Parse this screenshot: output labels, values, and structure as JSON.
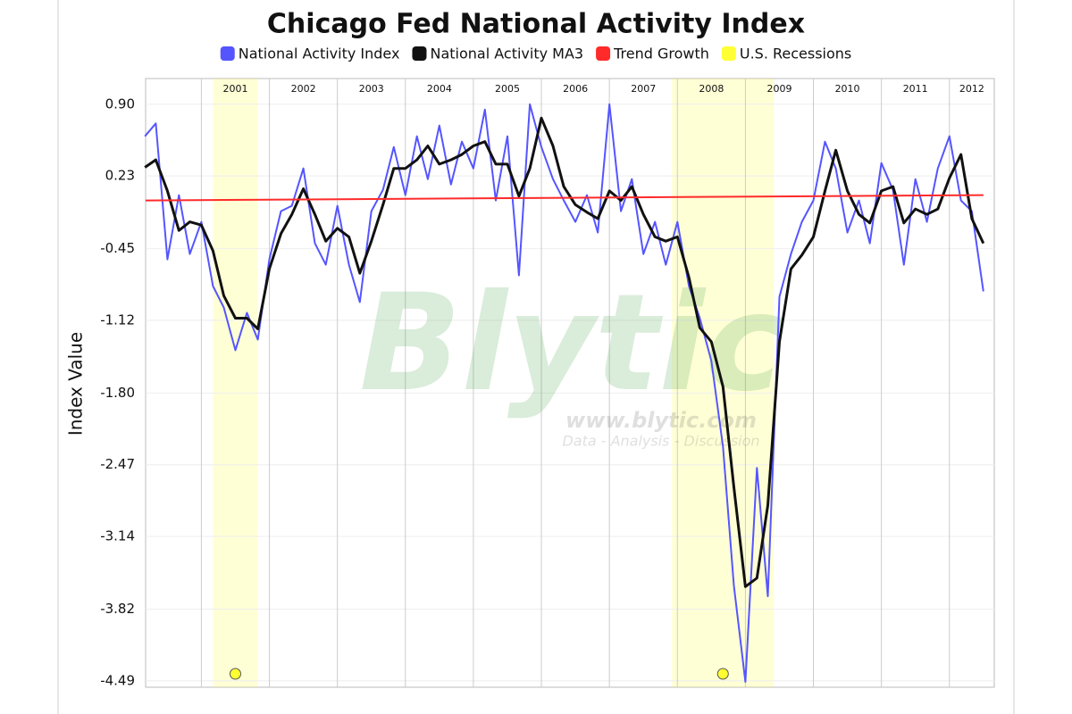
{
  "chart_data": {
    "type": "line",
    "title": "Chicago Fed National Activity Index",
    "ylabel": "Index Value",
    "xlim": [
      2000.18,
      2012.66
    ],
    "xticks": [
      2001,
      2002,
      2003,
      2004,
      2005,
      2006,
      2007,
      2008,
      2009,
      2010,
      2011,
      2012
    ],
    "ylim": [
      -4.55,
      1.14
    ],
    "yticks": [
      {
        "value": 0.9,
        "label": "0.90"
      },
      0.23,
      -0.45,
      -1.12,
      {
        "value": -1.8,
        "label": "-1.80"
      },
      -2.47,
      -3.14,
      -3.82,
      -4.49
    ],
    "grid": true,
    "legend": "top",
    "x": [
      2000.17,
      2000.33,
      2000.5,
      2000.67,
      2000.83,
      2001,
      2001.17,
      2001.33,
      2001.5,
      2001.67,
      2001.83,
      2002,
      2002.17,
      2002.33,
      2002.5,
      2002.67,
      2002.83,
      2003,
      2003.17,
      2003.33,
      2003.5,
      2003.67,
      2003.83,
      2004,
      2004.17,
      2004.33,
      2004.5,
      2004.67,
      2004.83,
      2005,
      2005.17,
      2005.33,
      2005.5,
      2005.67,
      2005.83,
      2006,
      2006.17,
      2006.33,
      2006.5,
      2006.67,
      2006.83,
      2007,
      2007.17,
      2007.33,
      2007.5,
      2007.67,
      2007.83,
      2008,
      2008.17,
      2008.33,
      2008.5,
      2008.67,
      2008.83,
      2009,
      2009.17,
      2009.33,
      2009.5,
      2009.67,
      2009.83,
      2010,
      2010.17,
      2010.33,
      2010.5,
      2010.67,
      2010.83,
      2011,
      2011.17,
      2011.33,
      2011.5,
      2011.67,
      2011.83,
      2012,
      2012.17,
      2012.33,
      2012.5
    ],
    "series": [
      {
        "name": "National Activity Index",
        "color": "#5555ff",
        "width": 2,
        "values": [
          0.6,
          0.72,
          -0.55,
          0.05,
          -0.5,
          -0.2,
          -0.8,
          -1.0,
          -1.4,
          -1.05,
          -1.3,
          -0.55,
          -0.1,
          -0.05,
          0.3,
          -0.4,
          -0.6,
          -0.05,
          -0.6,
          -0.95,
          -0.1,
          0.1,
          0.5,
          0.05,
          0.6,
          0.2,
          0.7,
          0.15,
          0.55,
          0.3,
          0.85,
          0.0,
          0.6,
          -0.7,
          0.9,
          0.5,
          0.2,
          0.0,
          -0.2,
          0.05,
          -0.3,
          0.9,
          -0.1,
          0.2,
          -0.5,
          -0.2,
          -0.6,
          -0.2,
          -0.8,
          -1.1,
          -1.5,
          -2.3,
          -3.6,
          -4.5,
          -2.5,
          -3.7,
          -0.9,
          -0.5,
          -0.2,
          0.0,
          0.55,
          0.3,
          -0.3,
          0.0,
          -0.4,
          0.35,
          0.1,
          -0.6,
          0.2,
          -0.2,
          0.3,
          0.6,
          0.0,
          -0.1,
          -0.85
        ]
      },
      {
        "name": "National Activity MA3",
        "color": "#111111",
        "width": 3,
        "values": [
          0.31,
          0.38,
          0.09,
          -0.28,
          -0.2,
          -0.23,
          -0.47,
          -0.89,
          -1.1,
          -1.1,
          -1.2,
          -0.64,
          -0.31,
          -0.13,
          0.11,
          -0.13,
          -0.38,
          -0.26,
          -0.34,
          -0.68,
          -0.38,
          -0.04,
          0.3,
          0.3,
          0.38,
          0.51,
          0.34,
          0.38,
          0.43,
          0.51,
          0.55,
          0.34,
          0.34,
          0.04,
          0.3,
          0.77,
          0.51,
          0.13,
          -0.04,
          -0.11,
          -0.17,
          0.09,
          0.0,
          0.13,
          -0.13,
          -0.34,
          -0.38,
          -0.34,
          -0.72,
          -1.19,
          -1.32,
          -1.74,
          -2.68,
          -3.61,
          -3.53,
          -2.85,
          -1.32,
          -0.64,
          -0.51,
          -0.34,
          0.09,
          0.47,
          0.09,
          -0.13,
          -0.21,
          0.09,
          0.13,
          -0.21,
          -0.08,
          -0.13,
          -0.08,
          0.21,
          0.43,
          -0.17,
          -0.4
        ]
      },
      {
        "name": "Trend Growth",
        "color": "#ff2a2a",
        "width": 2,
        "x": [
          2000.18,
          2012.5
        ],
        "values": [
          0.0,
          0.05
        ]
      }
    ],
    "recessions": {
      "name": "U.S. Recessions",
      "color": "#ffff33",
      "ranges": [
        [
          2001.17,
          2001.83
        ],
        [
          2007.92,
          2009.42
        ]
      ]
    },
    "watermark": [
      "Blytic",
      "www.blytic.com",
      "Data - Analysis - Discussion"
    ]
  }
}
